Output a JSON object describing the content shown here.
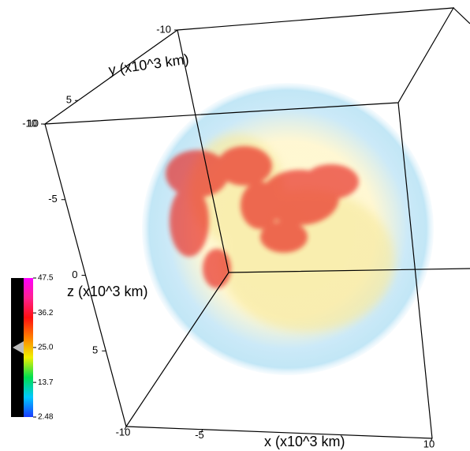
{
  "chart_data": {
    "type": "volume3d",
    "x_label": "x (x10^3 km)",
    "y_label": "y (x10^3 km)",
    "z_label": "z (x10^3 km)",
    "xlim": [
      -10,
      10
    ],
    "xticks": [
      -10,
      -5,
      10
    ],
    "ylim": [
      -10,
      10
    ],
    "yticks": [
      -10,
      5,
      10
    ],
    "zlim": [
      -10,
      10
    ],
    "zticks": [
      -10,
      -5,
      0,
      5
    ],
    "colorbar": {
      "lim": [
        2.48,
        47.5
      ],
      "ticks": [
        2.48,
        13.7,
        {
          "value": 25,
          "label": "25.0"
        },
        36.2,
        47.5
      ],
      "colors": [
        "#1a3cff",
        "#00c8ff",
        "#00e050",
        "#f0f000",
        "#ff8000",
        "#ff1010",
        "#ff2090",
        "#ff00ff"
      ]
    }
  }
}
